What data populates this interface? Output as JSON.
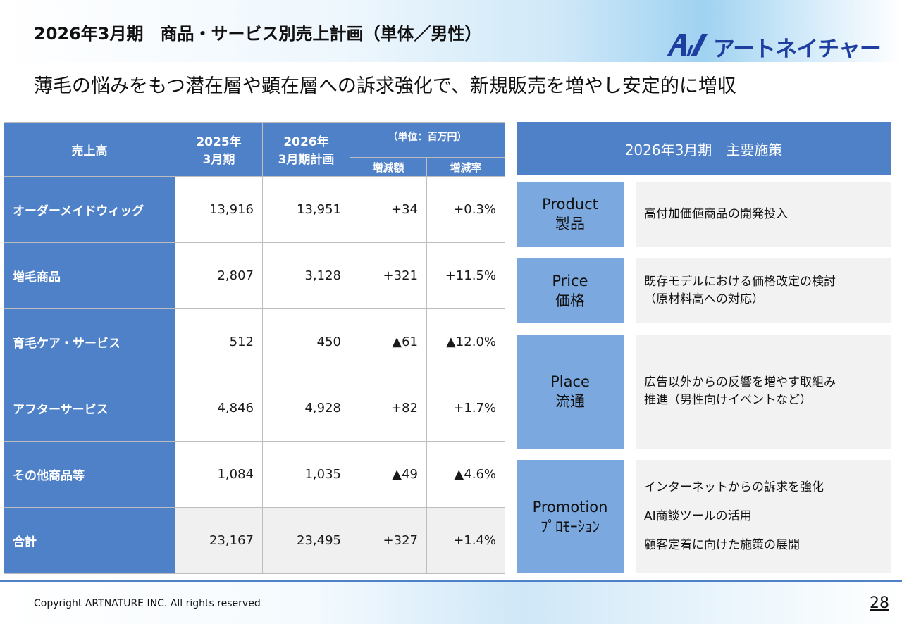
{
  "header": {
    "title": "2026年3月期　商品・サービス別売上計画（単体／男性）",
    "logo_text": "アートネイチャー",
    "subtitle": "薄毛の悩みをもつ潜在層や顕在層への訴求強化で、新規販売を増やし安定的に増収"
  },
  "table": {
    "header": {
      "label": "売上高",
      "col_2025": [
        "2025年",
        "3月期"
      ],
      "col_2026": [
        "2026年",
        "3月期計画"
      ],
      "unit": "（単位：百万円）",
      "diff": "増減額",
      "rate": "増減率"
    },
    "rows": [
      {
        "label": "オーダーメイドウィッグ",
        "fy2025": "13,916",
        "fy2026": "13,951",
        "diff": "+34",
        "rate": "+0.3%"
      },
      {
        "label": "増毛商品",
        "fy2025": "2,807",
        "fy2026": "3,128",
        "diff": "+321",
        "rate": "+11.5%"
      },
      {
        "label": "育毛ケア・サービス",
        "fy2025": "512",
        "fy2026": "450",
        "diff": "▲61",
        "rate": "▲12.0%"
      },
      {
        "label": "アフターサービス",
        "fy2025": "4,846",
        "fy2026": "4,928",
        "diff": "+82",
        "rate": "+1.7%"
      },
      {
        "label": "その他商品等",
        "fy2025": "1,084",
        "fy2026": "1,035",
        "diff": "▲49",
        "rate": "▲4.6%"
      },
      {
        "label": "合計",
        "fy2025": "23,167",
        "fy2026": "23,495",
        "diff": "+327",
        "rate": "+1.4%"
      }
    ]
  },
  "measures": {
    "title": "2026年3月期　主要施策",
    "items": [
      {
        "en": "Product",
        "ja": "製品",
        "desc": [
          "高付加価値商品の開発投入"
        ]
      },
      {
        "en": "Price",
        "ja": "価格",
        "desc": [
          "既存モデルにおける価格改定の検討",
          "（原材料高への対応）"
        ]
      },
      {
        "en": "Place",
        "ja": "流通",
        "desc": [
          "広告以外からの反響を増やす取組み",
          "推進（男性向けイベントなど）"
        ]
      },
      {
        "en": "Promotion",
        "ja": "ﾌﾟﾛﾓｰｼｮﾝ",
        "desc": [
          "インターネットからの訴求を強化",
          "AI商談ツールの活用",
          "顧客定着に向けた施策の展開"
        ]
      }
    ]
  },
  "footer": {
    "copyright": "Copyright ARTNATURE INC. All rights reserved",
    "page": "28"
  },
  "colors": {
    "accent_blue": "#4f81c8",
    "label_blue": "#7aa8df",
    "logo_blue": "#1e3fa0"
  }
}
